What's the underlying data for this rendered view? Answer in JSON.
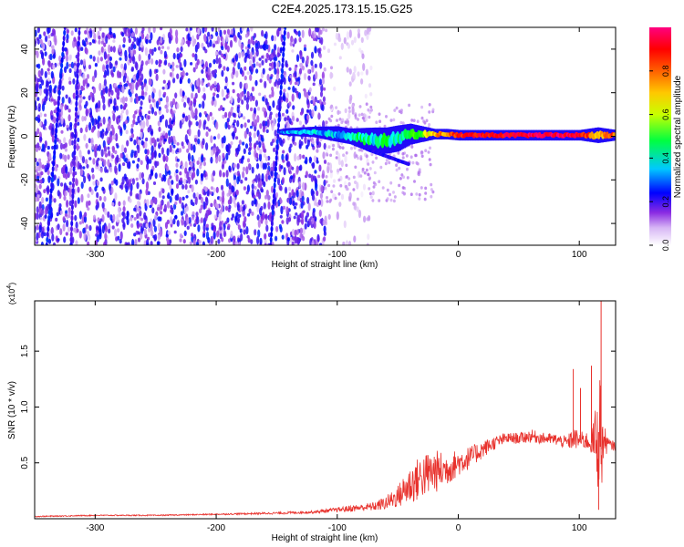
{
  "title": "C2E4.2025.173.15.15.G25",
  "chart_data": [
    {
      "type": "heatmap",
      "xlabel": "Height of straight line (km)",
      "ylabel": "Frequency (Hz)",
      "xlim": [
        -350,
        130
      ],
      "ylim": [
        -50,
        50
      ],
      "x_ticks": [
        -300,
        -200,
        -100,
        0,
        100
      ],
      "x_tick_labels": [
        "-300",
        "-200",
        "-100",
        "0",
        "100"
      ],
      "y_ticks": [
        -40,
        -20,
        0,
        20,
        40
      ],
      "y_tick_labels": [
        "-40",
        "-20",
        "0",
        "20",
        "40"
      ],
      "colorbar": {
        "label": "Normalized spectral amplitude",
        "range": [
          0.0,
          1.0
        ],
        "ticks": [
          0.0,
          0.2,
          0.4,
          0.6,
          0.8
        ],
        "tick_labels": [
          "0.0",
          "0.2",
          "0.4",
          "0.6",
          "0.8"
        ],
        "colormap": [
          "#ffffff",
          "#8a2be2",
          "#0000ff",
          "#00ffff",
          "#00ff00",
          "#ffff00",
          "#ff8000",
          "#ff0000",
          "#ff0080"
        ]
      },
      "scatter_background": {
        "x_range": [
          -350,
          -110
        ],
        "f_range": [
          -50,
          50
        ],
        "amplitude": 0.15
      },
      "streaks": [
        {
          "x_top": -325,
          "x_bottom": -340,
          "amplitude": 0.2
        },
        {
          "x_top": -313,
          "x_bottom": -320,
          "amplitude": 0.15
        },
        {
          "x_top": -143,
          "x_bottom": -155,
          "amplitude": 0.2
        }
      ],
      "signal_band": [
        {
          "x": -148,
          "f": 2,
          "halfwidth": 1,
          "amplitude": 0.25
        },
        {
          "x": -140,
          "f": 2,
          "halfwidth": 1.5,
          "amplitude": 0.3
        },
        {
          "x": -120,
          "f": 2,
          "halfwidth": 2,
          "amplitude": 0.35
        },
        {
          "x": -100,
          "f": 1,
          "halfwidth": 3,
          "amplitude": 0.35
        },
        {
          "x": -90,
          "f": 0,
          "halfwidth": 3,
          "amplitude": 0.4
        },
        {
          "x": -80,
          "f": -1,
          "halfwidth": 4,
          "amplitude": 0.45
        },
        {
          "x": -70,
          "f": -2,
          "halfwidth": 5,
          "amplitude": 0.4
        },
        {
          "x": -60,
          "f": -2,
          "halfwidth": 5,
          "amplitude": 0.45
        },
        {
          "x": -50,
          "f": -1,
          "halfwidth": 5,
          "amplitude": 0.4
        },
        {
          "x": -40,
          "f": 1,
          "halfwidth": 4,
          "amplitude": 0.45
        },
        {
          "x": -30,
          "f": 1,
          "halfwidth": 3,
          "amplitude": 0.55
        },
        {
          "x": -20,
          "f": 1,
          "halfwidth": 2,
          "amplitude": 0.7
        },
        {
          "x": -10,
          "f": 1,
          "halfwidth": 2,
          "amplitude": 0.75
        },
        {
          "x": 0,
          "f": 0.5,
          "halfwidth": 2,
          "amplitude": 0.85
        },
        {
          "x": 20,
          "f": 0.5,
          "halfwidth": 2,
          "amplitude": 0.9
        },
        {
          "x": 40,
          "f": 0.5,
          "halfwidth": 2,
          "amplitude": 0.9
        },
        {
          "x": 60,
          "f": 0.5,
          "halfwidth": 2,
          "amplitude": 0.95
        },
        {
          "x": 80,
          "f": 0.5,
          "halfwidth": 2,
          "amplitude": 0.95
        },
        {
          "x": 100,
          "f": 0.5,
          "halfwidth": 2,
          "amplitude": 0.9
        },
        {
          "x": 115,
          "f": 0.5,
          "halfwidth": 3,
          "amplitude": 0.7
        },
        {
          "x": 130,
          "f": 0.5,
          "halfwidth": 2,
          "amplitude": 0.8
        }
      ]
    },
    {
      "type": "line",
      "xlabel": "Height of straight line (km)",
      "ylabel": "SNR (10 * v/v)",
      "y_multiplier_label": "(x10",
      "y_multiplier_exp": "4",
      "xlim": [
        -350,
        130
      ],
      "ylim": [
        0,
        1.95
      ],
      "x_ticks": [
        -300,
        -200,
        -100,
        0,
        100
      ],
      "x_tick_labels": [
        "-300",
        "-200",
        "-100",
        "0",
        "100"
      ],
      "y_ticks": [
        0.5,
        1.0,
        1.5
      ],
      "y_tick_labels": [
        "0.5",
        "1.0",
        "1.5"
      ],
      "series_color": "#e8312c",
      "series": [
        {
          "x": [
            -350,
            -300,
            -250,
            -200,
            -150,
            -120,
            -100,
            -90,
            -80,
            -70,
            -60,
            -50,
            -40,
            -30,
            -20,
            -10,
            0,
            10,
            20,
            30,
            40,
            50,
            60,
            70,
            80,
            90,
            95,
            100,
            105,
            110,
            113,
            115,
            117,
            118,
            120,
            125,
            130
          ],
          "y": [
            0.02,
            0.03,
            0.03,
            0.04,
            0.05,
            0.06,
            0.08,
            0.09,
            0.1,
            0.11,
            0.14,
            0.2,
            0.3,
            0.38,
            0.42,
            0.44,
            0.5,
            0.55,
            0.62,
            0.68,
            0.72,
            0.72,
            0.74,
            0.72,
            0.71,
            0.68,
            0.72,
            0.7,
            0.7,
            0.68,
            0.7,
            0.65,
            0.9,
            0.62,
            0.7,
            0.66,
            0.65
          ],
          "noise": [
            0.005,
            0.005,
            0.005,
            0.006,
            0.01,
            0.012,
            0.02,
            0.03,
            0.03,
            0.04,
            0.06,
            0.1,
            0.18,
            0.2,
            0.2,
            0.15,
            0.12,
            0.1,
            0.08,
            0.06,
            0.05,
            0.05,
            0.06,
            0.05,
            0.05,
            0.06,
            0.1,
            0.08,
            0.08,
            0.1,
            0.3,
            0.4,
            0.6,
            0.5,
            0.15,
            0.05,
            0.04
          ]
        }
      ],
      "spikes": [
        {
          "x": 95,
          "y": 1.34
        },
        {
          "x": 101,
          "y": 1.17
        },
        {
          "x": 110,
          "y": 1.37
        },
        {
          "x": 116,
          "y": 0.08
        },
        {
          "x": 118,
          "y": 1.95
        }
      ]
    }
  ]
}
